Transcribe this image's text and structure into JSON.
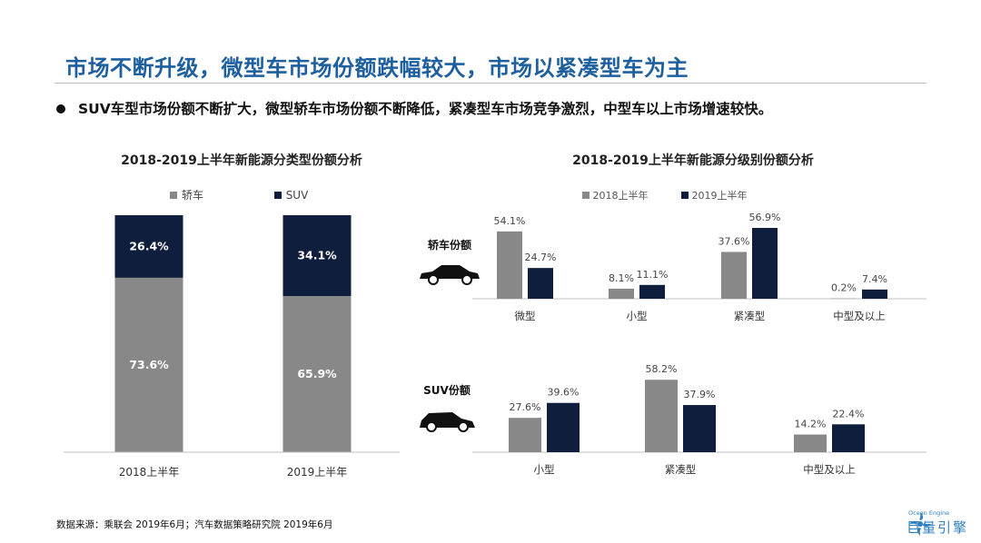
{
  "page": {
    "title": "市场不断升级，微型车市场份额跌幅较大，市场以紧凑型车为主",
    "subtitle": "SUV车型市场份额不断扩大，微型轿车市场份额不断降低，紧凑型车市场竞争激烈，中型车以上市场增速较快。",
    "source": "数据来源：乘联会 2019年6月；汽车数据策略研究院   2019年6月",
    "logo_small": "Ocean Engine",
    "logo_big": "巨量引擎"
  },
  "colors": {
    "gray": "#888888",
    "navy": "#0f1e3d",
    "title_blue": "#1e5fa0"
  },
  "chart_data": [
    {
      "type": "bar",
      "stacked": true,
      "percent": true,
      "title": "2018-2019上半年新能源分类型份额分析",
      "categories": [
        "2018上半年",
        "2019上半年"
      ],
      "series": [
        {
          "name": "轿车",
          "color": "#888888",
          "values": [
            73.6,
            65.9
          ],
          "labels": [
            "73.6%",
            "65.9%"
          ]
        },
        {
          "name": "SUV",
          "color": "#0f1e3d",
          "values": [
            26.4,
            34.1
          ],
          "labels": [
            "26.4%",
            "34.1%"
          ]
        }
      ],
      "ylim": [
        0,
        100
      ]
    },
    {
      "type": "bar",
      "title": "2018-2019上半年新能源分级别份额分析",
      "legend": [
        "2018上半年",
        "2019上半年"
      ],
      "panels": [
        {
          "name": "轿车份额",
          "categories": [
            "微型",
            "小型",
            "紧凑型",
            "中型及以上"
          ],
          "series": [
            {
              "name": "2018上半年",
              "color": "#888888",
              "values": [
                54.1,
                8.1,
                37.6,
                0.2
              ],
              "labels": [
                "54.1%",
                "8.1%",
                "37.6%",
                "0.2%"
              ]
            },
            {
              "name": "2019上半年",
              "color": "#0f1e3d",
              "values": [
                24.7,
                11.1,
                56.9,
                7.4
              ],
              "labels": [
                "24.7%",
                "11.1%",
                "56.9%",
                "7.4%"
              ]
            }
          ]
        },
        {
          "name": "SUV份额",
          "categories": [
            "小型",
            "紧凑型",
            "中型及以上"
          ],
          "series": [
            {
              "name": "2018上半年",
              "color": "#888888",
              "values": [
                27.6,
                58.2,
                14.2
              ],
              "labels": [
                "27.6%",
                "58.2%",
                "14.2%"
              ]
            },
            {
              "name": "2019上半年",
              "color": "#0f1e3d",
              "values": [
                39.6,
                37.9,
                22.4
              ],
              "labels": [
                "39.6%",
                "37.9%",
                "22.4%"
              ]
            }
          ]
        }
      ]
    }
  ]
}
